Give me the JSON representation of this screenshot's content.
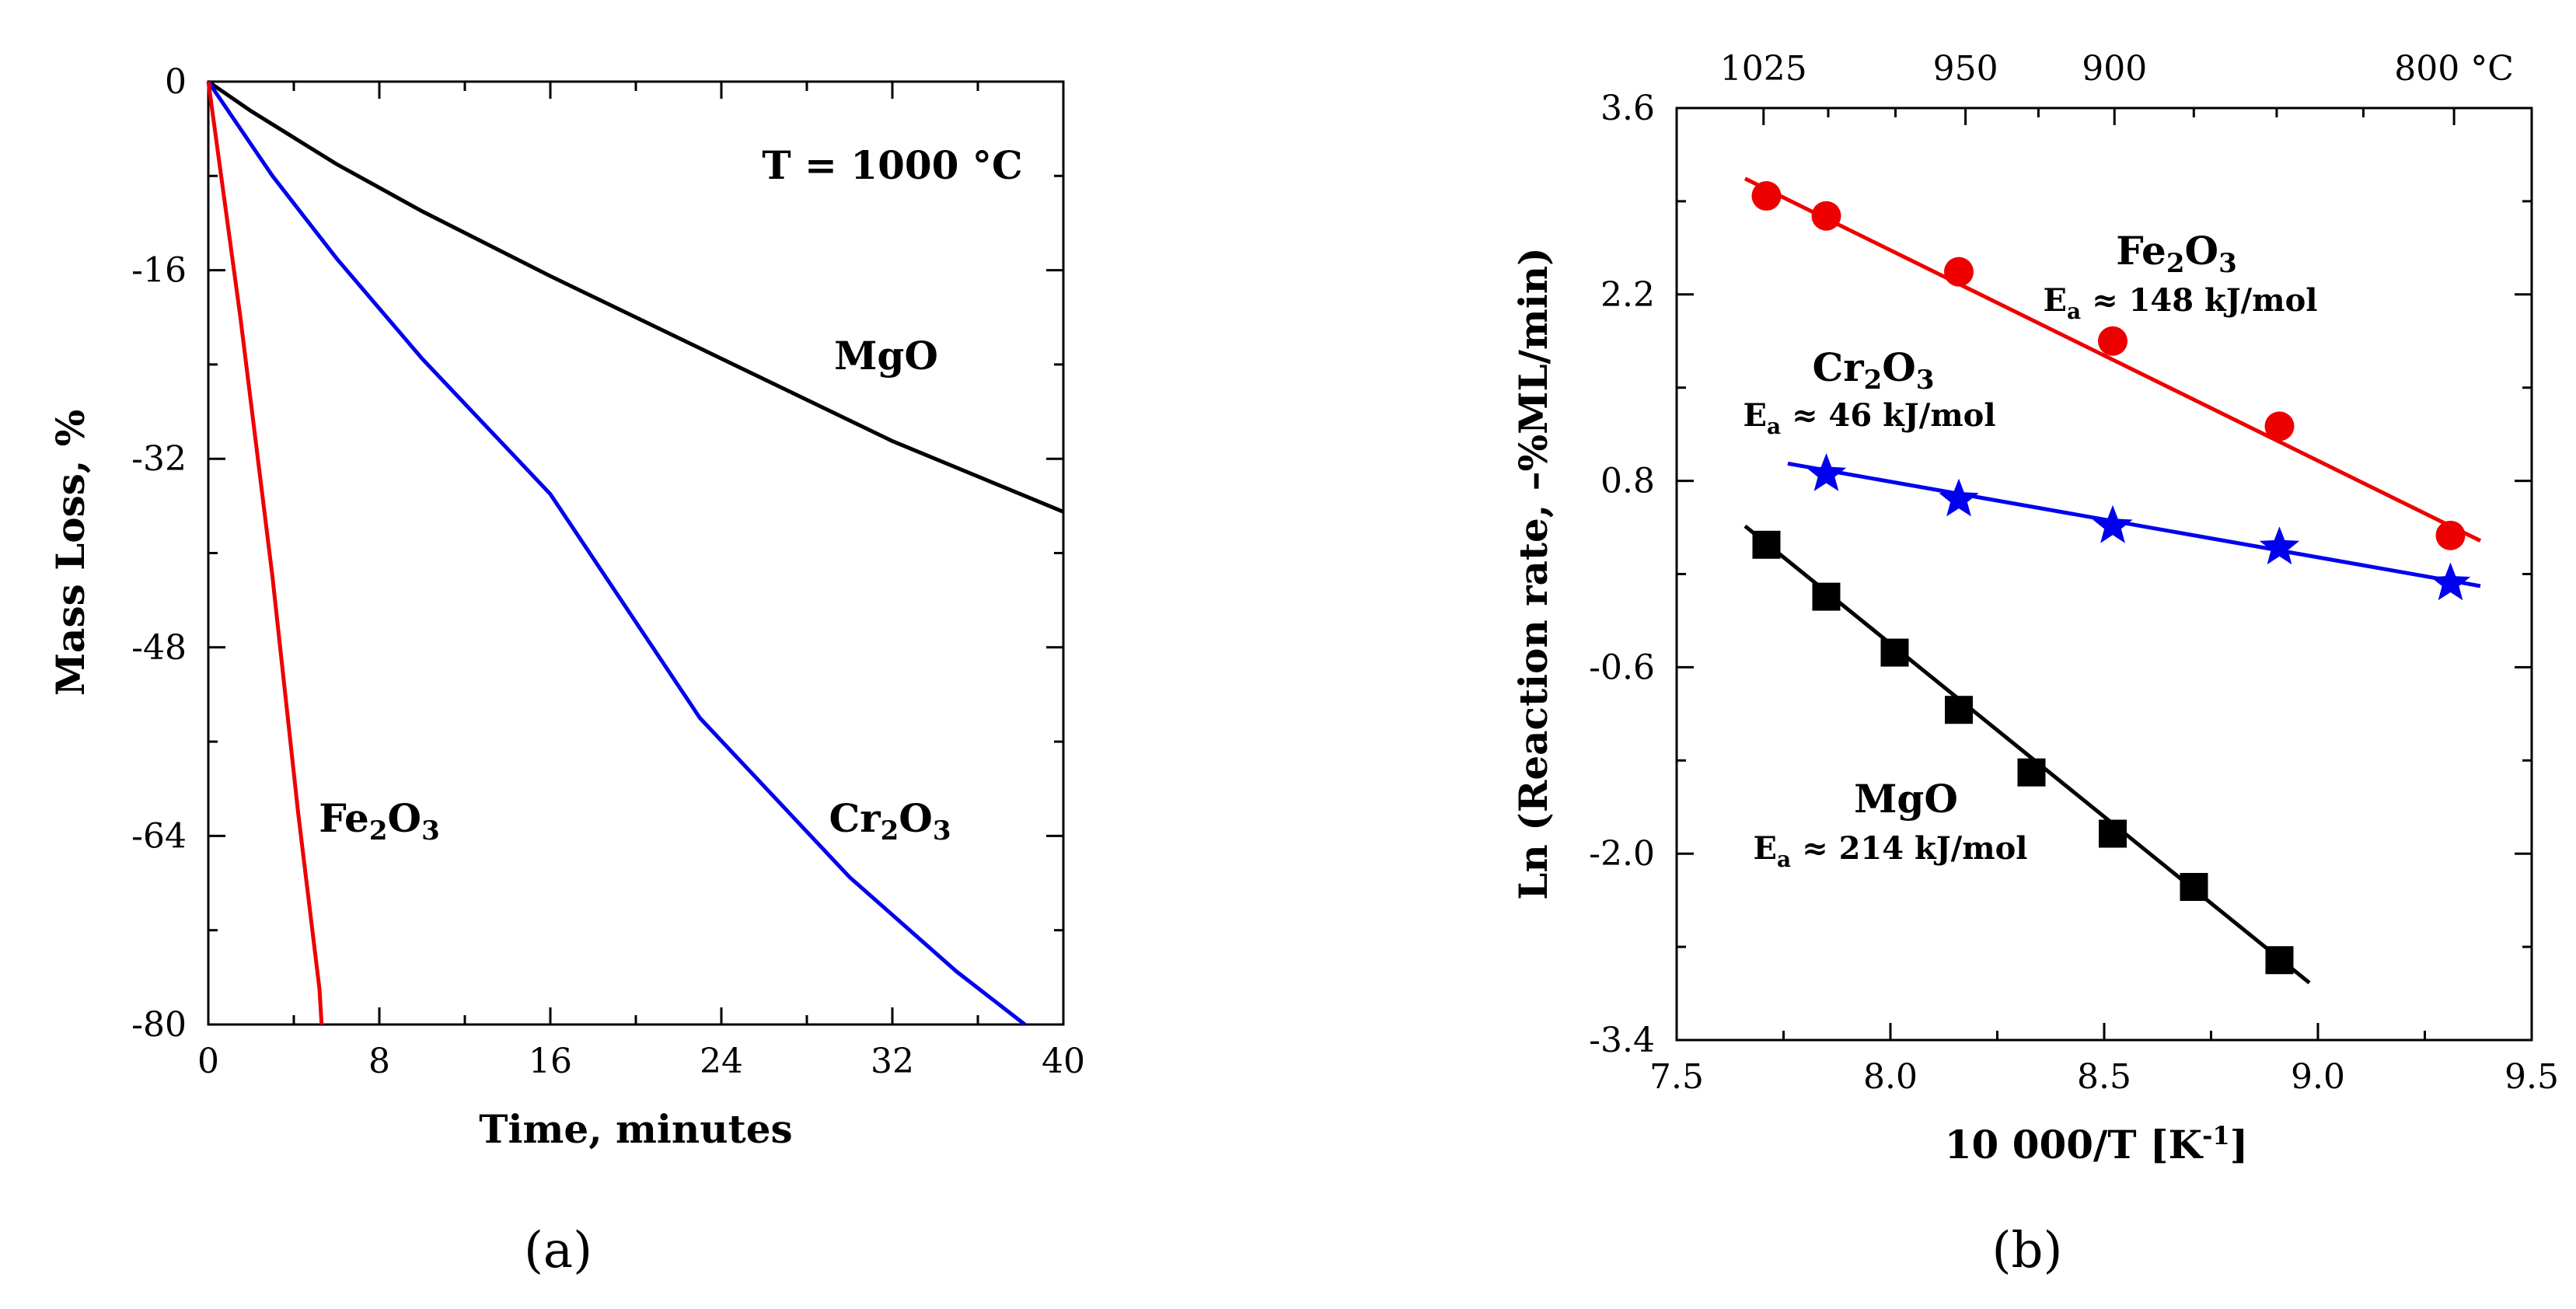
{
  "chart_data": [
    {
      "id": "a",
      "type": "line",
      "panel_label": "(a)",
      "title": "T = 1000 °C",
      "xlabel": "Time, minutes",
      "ylabel": "Mass Loss, %",
      "xlim": [
        0,
        40
      ],
      "ylim": [
        -80,
        0
      ],
      "xticks": [
        0,
        8,
        16,
        24,
        32,
        40
      ],
      "yticks": [
        0,
        -16,
        -32,
        -48,
        -64,
        -80
      ],
      "series": [
        {
          "name": "MgO",
          "label_main": "MgO",
          "label_sub": "",
          "label_tail": "",
          "color": "#000000",
          "x": [
            0,
            2,
            6,
            10,
            16,
            24,
            32,
            40
          ],
          "y": [
            0,
            -2.5,
            -7,
            -11,
            -16.5,
            -23.5,
            -30.5,
            -36.5
          ]
        },
        {
          "name": "Cr2O3",
          "label_main": "Cr",
          "label_sub": "2",
          "label_tail": "O",
          "label_sub2": "3",
          "color": "#0000ee",
          "x": [
            0,
            3,
            6,
            10,
            16,
            23,
            30,
            35,
            38.2
          ],
          "y": [
            0,
            -8,
            -15,
            -23.5,
            -35,
            -54,
            -67.5,
            -75.5,
            -80
          ]
        },
        {
          "name": "Fe2O3",
          "label_main": "Fe",
          "label_sub": "2",
          "label_tail": "O",
          "label_sub2": "3",
          "color": "#ee0000",
          "x": [
            0,
            1.5,
            3,
            4.2,
            5.2,
            5.3
          ],
          "y": [
            0,
            -20,
            -42,
            -62,
            -77,
            -80
          ]
        }
      ]
    },
    {
      "id": "b",
      "type": "scatter",
      "panel_label": "(b)",
      "xlabel_main": "10 000/T [K",
      "xlabel_sup": "-1",
      "xlabel_end": "]",
      "ylabel": "Ln (Reaction rate, –%ML/min)",
      "xlim": [
        7.5,
        9.5
      ],
      "ylim": [
        -3.4,
        3.6
      ],
      "xticks": [
        7.5,
        8.0,
        8.5,
        9.0,
        9.5
      ],
      "xtick_labels": [
        "7.5",
        "8.0",
        "8.5",
        "9.0",
        "9.5"
      ],
      "yticks": [
        3.6,
        2.2,
        0.8,
        -0.6,
        -2.0,
        -3.4
      ],
      "ytick_labels": [
        "3.6",
        "2.2",
        "0.8",
        "-0.6",
        "-2.0",
        "-3.4"
      ],
      "top_axis_celsius": [
        1025,
        950,
        900,
        800
      ],
      "top_axis_labels": [
        "1025",
        "950",
        "900",
        "800 °C"
      ],
      "series": [
        {
          "name": "Fe2O3",
          "marker": "circle",
          "color": "#ee0000",
          "label_main": "Fe",
          "label_sub": "2",
          "label_tail": "O",
          "label_sub2": "3",
          "ea_main": "E",
          "ea_sub": "a",
          "ea_tail": " ≈  148 kJ/mol",
          "x": [
            7.71,
            7.85,
            8.16,
            8.52,
            8.91,
            9.31
          ],
          "y": [
            2.94,
            2.79,
            2.37,
            1.85,
            1.21,
            0.39
          ],
          "fit": {
            "x": [
              7.66,
              9.38
            ],
            "y": [
              3.07,
              0.35
            ]
          }
        },
        {
          "name": "Cr2O3",
          "marker": "star",
          "color": "#0000ee",
          "label_main": "Cr",
          "label_sub": "2",
          "label_tail": "O",
          "label_sub2": "3",
          "ea_main": "E",
          "ea_sub": "a",
          "ea_tail": " ≈  46 kJ/mol",
          "x": [
            7.85,
            8.16,
            8.52,
            8.91,
            9.31
          ],
          "y": [
            0.85,
            0.66,
            0.46,
            0.3,
            0.03
          ],
          "fit": {
            "x": [
              7.76,
              9.38
            ],
            "y": [
              0.93,
              0.01
            ]
          }
        },
        {
          "name": "MgO",
          "marker": "square",
          "color": "#000000",
          "label_main": "MgO",
          "label_sub": "",
          "label_tail": "",
          "label_sub2": "",
          "ea_main": "E",
          "ea_sub": "a",
          "ea_tail": " ≈  214 kJ/mol",
          "x": [
            7.71,
            7.85,
            8.01,
            8.16,
            8.33,
            8.52,
            8.71,
            8.91
          ],
          "y": [
            0.32,
            -0.07,
            -0.49,
            -0.92,
            -1.39,
            -1.85,
            -2.25,
            -2.8
          ],
          "fit": {
            "x": [
              7.66,
              8.98
            ],
            "y": [
              0.46,
              -2.97
            ]
          }
        }
      ]
    }
  ]
}
